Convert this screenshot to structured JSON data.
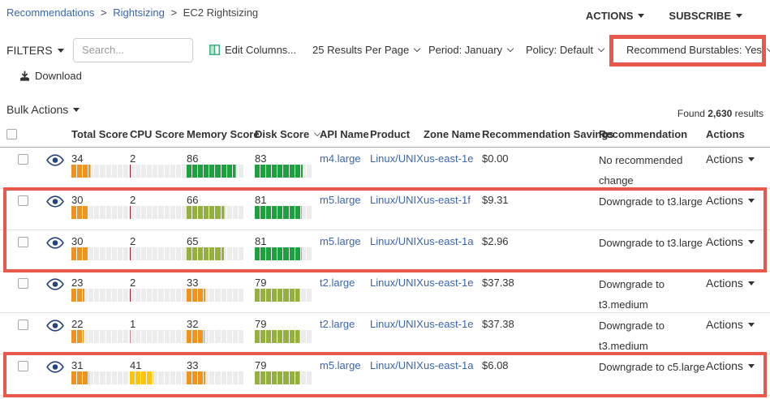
{
  "breadcrumb": {
    "separator": ">",
    "items": [
      {
        "label": "Recommendations"
      },
      {
        "label": "Rightsizing"
      },
      {
        "label": "EC2 Rightsizing"
      }
    ]
  },
  "top_actions": {
    "actions_label": "ACTIONS",
    "subscribe_label": "SUBSCRIBE"
  },
  "toolbar": {
    "filters_label": "FILTERS",
    "search_placeholder": "Search...",
    "edit_columns_label": "Edit Columns...",
    "results_per_page_label": "25 Results Per Page",
    "period_label": "Period: January",
    "policy_label": "Policy: Default",
    "burstables_label": "Recommend Burstables: Yes",
    "download_label": "Download"
  },
  "bulk_bar": {
    "bulk_actions_label": "Bulk Actions",
    "found_prefix": "Found",
    "found_count": "2,630",
    "found_suffix": "results"
  },
  "table": {
    "headers": {
      "total_score": "Total Score",
      "cpu_score": "CPU Score",
      "memory_score": "Memory Score",
      "disk_score": "Disk Score",
      "api_name": "API Name",
      "product": "Product",
      "zone_name": "Zone Name",
      "savings": "Recommendation Savings",
      "recommendation": "Recommendation",
      "actions": "Actions"
    },
    "sorted_column": "disk_score",
    "rows": [
      {
        "total": {
          "value": 34,
          "level": "orange"
        },
        "cpu": {
          "value": 2,
          "level": "red"
        },
        "memory": {
          "value": 86,
          "level": "green"
        },
        "disk": {
          "value": 83,
          "level": "green"
        },
        "api_name": "m4.large",
        "product": "Linux/UNIX",
        "zone_name": "us-east-1e",
        "savings": "$0.00",
        "recommendation": "No recommended\nchange",
        "actions_label": "Actions",
        "highlighted": false
      },
      {
        "total": {
          "value": 30,
          "level": "orange"
        },
        "cpu": {
          "value": 2,
          "level": "red"
        },
        "memory": {
          "value": 66,
          "level": "olive"
        },
        "disk": {
          "value": 81,
          "level": "green"
        },
        "api_name": "m5.large",
        "product": "Linux/UNIX",
        "zone_name": "us-east-1f",
        "savings": "$9.31",
        "recommendation": "Downgrade to t3.large",
        "actions_label": "Actions",
        "highlighted": true
      },
      {
        "total": {
          "value": 30,
          "level": "orange"
        },
        "cpu": {
          "value": 2,
          "level": "red"
        },
        "memory": {
          "value": 65,
          "level": "olive"
        },
        "disk": {
          "value": 81,
          "level": "green"
        },
        "api_name": "m5.large",
        "product": "Linux/UNIX",
        "zone_name": "us-east-1a",
        "savings": "$2.96",
        "recommendation": "Downgrade to t3.large",
        "actions_label": "Actions",
        "highlighted": true
      },
      {
        "total": {
          "value": 23,
          "level": "orange"
        },
        "cpu": {
          "value": 2,
          "level": "red"
        },
        "memory": {
          "value": 33,
          "level": "orange"
        },
        "disk": {
          "value": 79,
          "level": "olive"
        },
        "api_name": "t2.large",
        "product": "Linux/UNIX",
        "zone_name": "us-east-1e",
        "savings": "$37.38",
        "recommendation": "Downgrade to\nt3.medium",
        "actions_label": "Actions",
        "highlighted": false
      },
      {
        "total": {
          "value": 22,
          "level": "orange"
        },
        "cpu": {
          "value": 1,
          "level": "red"
        },
        "memory": {
          "value": 32,
          "level": "orange"
        },
        "disk": {
          "value": 79,
          "level": "olive"
        },
        "api_name": "t2.large",
        "product": "Linux/UNIX",
        "zone_name": "us-east-1e",
        "savings": "$37.38",
        "recommendation": "Downgrade to\nt3.medium",
        "actions_label": "Actions",
        "highlighted": false
      },
      {
        "total": {
          "value": 31,
          "level": "orange"
        },
        "cpu": {
          "value": 41,
          "level": "yellow"
        },
        "memory": {
          "value": 33,
          "level": "orange"
        },
        "disk": {
          "value": 79,
          "level": "olive"
        },
        "api_name": "m5.large",
        "product": "Linux/UNIX",
        "zone_name": "us-east-1a",
        "savings": "$6.08",
        "recommendation": "Downgrade to c5.large",
        "actions_label": "Actions",
        "highlighted": true
      }
    ]
  },
  "palette": {
    "red": "#A01931",
    "orange": "#F0941F",
    "yellow": "#FFC40D",
    "olive": "#93B13C",
    "green": "#1CA23C",
    "empty": "#ECECEC",
    "highlight_border": "#E8584B",
    "link": "#3A66B0",
    "eye_icon": "#25447E",
    "edit_columns_icon": "#3FAE7E"
  }
}
